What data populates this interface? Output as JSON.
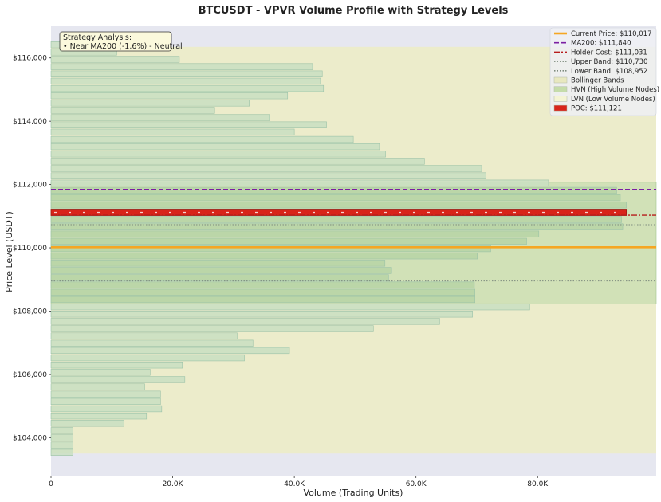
{
  "chart_data": {
    "type": "bar",
    "orientation": "horizontal",
    "title": "BTCUSDT - VPVR Volume Profile with Strategy Levels",
    "xlabel": "Volume (Trading Units)",
    "ylabel": "Price Level (USDT)",
    "xlim": [
      0,
      99500
    ],
    "ylim": [
      102800,
      117000
    ],
    "x_ticks": [
      0,
      20000,
      40000,
      60000,
      80000
    ],
    "x_tick_labels": [
      "0",
      "20.0K",
      "40.0K",
      "60.0K",
      "80.0K"
    ],
    "y_ticks": [
      104000,
      106000,
      108000,
      110000,
      112000,
      114000,
      116000
    ],
    "y_tick_labels": [
      "$104,000",
      "$106,000",
      "$108,000",
      "$110,000",
      "$112,000",
      "$114,000",
      "$116,000"
    ],
    "bins": {
      "start_price": 103420,
      "bin_size": 230,
      "volumes": [
        3600,
        3600,
        3600,
        3600,
        12000,
        15700,
        18200,
        18000,
        18000,
        15400,
        22000,
        16300,
        21600,
        31800,
        39200,
        33200,
        30600,
        53000,
        63900,
        69300,
        78700,
        69700,
        69700,
        69600,
        55500,
        56000,
        54900,
        70100,
        72300,
        78200,
        80200,
        94000,
        93800,
        94000,
        94600,
        93600,
        93000,
        81800,
        71500,
        70800,
        61400,
        55000,
        54000,
        49700,
        40000,
        45300,
        35900,
        26900,
        32600,
        38900,
        44800,
        44300,
        44600,
        43000,
        21100,
        10800,
        6000
      ],
      "hvn_range": [
        108230,
        112070
      ]
    },
    "levels": {
      "current_price": 110017,
      "ma200": 111840,
      "holder_cost": 111031,
      "upper_band": 110730,
      "lower_band": 108952,
      "poc": 111121
    },
    "bollinger_range": [
      103500,
      116350
    ],
    "legend": [
      {
        "label": "Current Price: $110,017",
        "kind": "line",
        "color": "#f5a623",
        "dash": ""
      },
      {
        "label": "MA200: $111,840",
        "kind": "line",
        "color": "#7b1fa2",
        "dash": "6,3"
      },
      {
        "label": "Holder Cost: $111,031",
        "kind": "line",
        "color": "#b71c1c",
        "dash": "7,2,2,2"
      },
      {
        "label": "Upper Band: $110,730",
        "kind": "line",
        "color": "#7f8c7f",
        "dash": "1.5,2"
      },
      {
        "label": "Lower Band: $108,952",
        "kind": "line",
        "color": "#7f8c7f",
        "dash": "1.5,2"
      },
      {
        "label": "Bollinger Bands",
        "kind": "patch",
        "color": "#e8e8c0"
      },
      {
        "label": "HVN (High Volume Nodes)",
        "kind": "patch",
        "color": "#c5dcaa"
      },
      {
        "label": "LVN (Low Volume Nodes)",
        "kind": "patch",
        "color": "#f4f4d4"
      },
      {
        "label": "POC: $111,121",
        "kind": "patch",
        "color": "#d8241a"
      }
    ],
    "legend_position": "top-right",
    "annotation": {
      "title": "Strategy Analysis:",
      "line": "• Near MA200 (-1.6%) - Neutral"
    },
    "colors": {
      "plot_bg": "#e6e7f0",
      "bollinger": "#ececcb",
      "hvn": "#c8ddb0",
      "bar_fill": "#c9dfc2",
      "bar_edge": "#9bc2a8",
      "poc": "#d8241a",
      "current": "#f5a623",
      "ma200": "#7b1fa2",
      "holder": "#b71c1c",
      "band": "#7f8c7f"
    }
  }
}
